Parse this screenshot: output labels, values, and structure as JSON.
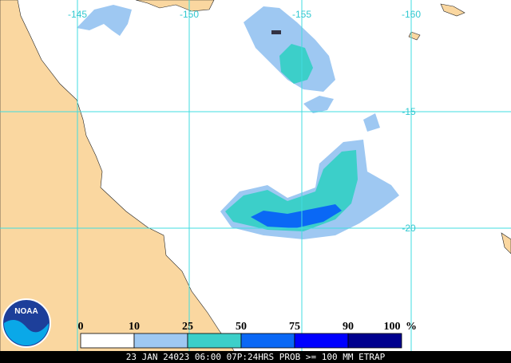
{
  "map": {
    "lon_labels": [
      "-145",
      "-150",
      "-155",
      "-160"
    ],
    "lat_labels": [
      "-15",
      "-20"
    ],
    "logo": "NOAA",
    "legend": {
      "labels": [
        "0",
        "10",
        "25",
        "50",
        "75",
        "90",
        "100"
      ],
      "unit": "%",
      "colors": [
        "#ffffff",
        "#9ec8f2",
        "#3ccfc9",
        "#0a68f5",
        "#0000ff",
        "#00008e"
      ]
    },
    "footer": "23 JAN 24023 06:00 07P:24HRS PROB >= 100 MM ETRAP"
  }
}
